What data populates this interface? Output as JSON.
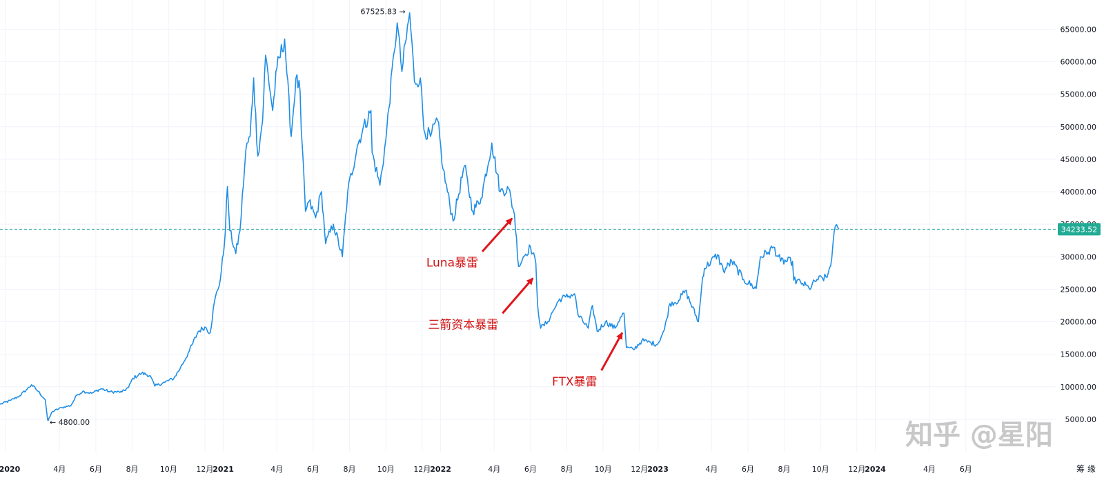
{
  "chart_data": {
    "type": "line",
    "title": "",
    "xlabel": "",
    "ylabel": "",
    "ylim": [
      0,
      69500
    ],
    "x_range": [
      "2019-12-23",
      "2024-10-30"
    ],
    "grid": true,
    "colors": {
      "line": "#1f8ee6",
      "price_line": "#26a69a",
      "price_badge": "#22ab94",
      "annotation": "#d10f0f",
      "arrow": "#e0161b",
      "grid": "#f0f3fa"
    },
    "y_ticks": [
      {
        "value": 5000,
        "label": "5000.00"
      },
      {
        "value": 10000,
        "label": "10000.00"
      },
      {
        "value": 15000,
        "label": "15000.00"
      },
      {
        "value": 20000,
        "label": "20000.00"
      },
      {
        "value": 25000,
        "label": "25000.00"
      },
      {
        "value": 30000,
        "label": "30000.00"
      },
      {
        "value": 35000,
        "label": "35000.00"
      },
      {
        "value": 40000,
        "label": "40000.00"
      },
      {
        "value": 45000,
        "label": "45000.00"
      },
      {
        "value": 50000,
        "label": "50000.00"
      },
      {
        "value": 55000,
        "label": "55000.00"
      },
      {
        "value": 60000,
        "label": "60000.00"
      },
      {
        "value": 65000,
        "label": "65000.00"
      }
    ],
    "x_ticks": [
      {
        "date": "2020-01-01",
        "label": "2020",
        "year": true
      },
      {
        "date": "2020-04-01",
        "label": "4月"
      },
      {
        "date": "2020-06-01",
        "label": "6月"
      },
      {
        "date": "2020-08-01",
        "label": "8月"
      },
      {
        "date": "2020-10-01",
        "label": "10月"
      },
      {
        "date": "2020-12-01",
        "label": "12月"
      },
      {
        "date": "2021-01-01",
        "label": "2021",
        "year": true
      },
      {
        "date": "2021-04-01",
        "label": "4月"
      },
      {
        "date": "2021-06-01",
        "label": "6月"
      },
      {
        "date": "2021-08-01",
        "label": "8月"
      },
      {
        "date": "2021-10-01",
        "label": "10月"
      },
      {
        "date": "2021-12-01",
        "label": "12月"
      },
      {
        "date": "2022-01-01",
        "label": "2022",
        "year": true
      },
      {
        "date": "2022-04-01",
        "label": "4月"
      },
      {
        "date": "2022-06-01",
        "label": "6月"
      },
      {
        "date": "2022-08-01",
        "label": "8月"
      },
      {
        "date": "2022-10-01",
        "label": "10月"
      },
      {
        "date": "2022-12-01",
        "label": "12月"
      },
      {
        "date": "2023-01-01",
        "label": "2023",
        "year": true
      },
      {
        "date": "2023-04-01",
        "label": "4月"
      },
      {
        "date": "2023-06-01",
        "label": "6月"
      },
      {
        "date": "2023-08-01",
        "label": "8月"
      },
      {
        "date": "2023-10-01",
        "label": "10月"
      },
      {
        "date": "2023-12-01",
        "label": "12月"
      },
      {
        "date": "2024-01-01",
        "label": "2024",
        "year": true
      },
      {
        "date": "2024-04-01",
        "label": "4月"
      },
      {
        "date": "2024-06-01",
        "label": "6月"
      }
    ],
    "series": [
      {
        "points": [
          [
            "2019-12-23",
            7300
          ],
          [
            "2020-01-10",
            7900
          ],
          [
            "2020-01-25",
            8600
          ],
          [
            "2020-02-05",
            9500
          ],
          [
            "2020-02-14",
            10300
          ],
          [
            "2020-02-25",
            9300
          ],
          [
            "2020-03-08",
            8000
          ],
          [
            "2020-03-12",
            4900
          ],
          [
            "2020-03-13",
            4800
          ],
          [
            "2020-03-20",
            6200
          ],
          [
            "2020-04-05",
            6800
          ],
          [
            "2020-04-20",
            7100
          ],
          [
            "2020-04-30",
            8700
          ],
          [
            "2020-05-10",
            9300
          ],
          [
            "2020-05-25",
            9000
          ],
          [
            "2020-06-10",
            9700
          ],
          [
            "2020-06-25",
            9200
          ],
          [
            "2020-07-15",
            9200
          ],
          [
            "2020-07-26",
            9900
          ],
          [
            "2020-08-02",
            11300
          ],
          [
            "2020-08-17",
            12100
          ],
          [
            "2020-08-31",
            11700
          ],
          [
            "2020-09-08",
            10100
          ],
          [
            "2020-09-25",
            10700
          ],
          [
            "2020-10-10",
            11300
          ],
          [
            "2020-10-21",
            12900
          ],
          [
            "2020-11-05",
            15500
          ],
          [
            "2020-11-20",
            18500
          ],
          [
            "2020-12-01",
            19200
          ],
          [
            "2020-12-10",
            18300
          ],
          [
            "2020-12-17",
            23000
          ],
          [
            "2020-12-27",
            26500
          ],
          [
            "2021-01-03",
            32000
          ],
          [
            "2021-01-08",
            40800
          ],
          [
            "2021-01-12",
            34000
          ],
          [
            "2021-01-22",
            30500
          ],
          [
            "2021-01-29",
            34000
          ],
          [
            "2021-02-08",
            46500
          ],
          [
            "2021-02-15",
            48500
          ],
          [
            "2021-02-21",
            57500
          ],
          [
            "2021-02-28",
            45500
          ],
          [
            "2021-03-08",
            51000
          ],
          [
            "2021-03-13",
            61000
          ],
          [
            "2021-03-25",
            52500
          ],
          [
            "2021-04-01",
            59000
          ],
          [
            "2021-04-14",
            63500
          ],
          [
            "2021-04-25",
            48500
          ],
          [
            "2021-05-03",
            57500
          ],
          [
            "2021-05-10",
            55500
          ],
          [
            "2021-05-12",
            49500
          ],
          [
            "2021-05-19",
            37000
          ],
          [
            "2021-05-25",
            38500
          ],
          [
            "2021-06-05",
            36000
          ],
          [
            "2021-06-15",
            40000
          ],
          [
            "2021-06-22",
            32000
          ],
          [
            "2021-07-05",
            35000
          ],
          [
            "2021-07-20",
            30000
          ],
          [
            "2021-07-29",
            40000
          ],
          [
            "2021-08-14",
            47000
          ],
          [
            "2021-08-23",
            49500
          ],
          [
            "2021-09-06",
            52500
          ],
          [
            "2021-09-08",
            46000
          ],
          [
            "2021-09-21",
            41000
          ],
          [
            "2021-10-01",
            48000
          ],
          [
            "2021-10-15",
            61500
          ],
          [
            "2021-10-20",
            66000
          ],
          [
            "2021-10-28",
            58500
          ],
          [
            "2021-11-10",
            67525.83
          ],
          [
            "2021-11-18",
            57000
          ],
          [
            "2021-11-28",
            57500
          ],
          [
            "2021-12-04",
            49500
          ],
          [
            "2021-12-15",
            48500
          ],
          [
            "2021-12-27",
            51000
          ],
          [
            "2022-01-05",
            43500
          ],
          [
            "2022-01-22",
            35500
          ],
          [
            "2022-02-10",
            44000
          ],
          [
            "2022-02-24",
            37000
          ],
          [
            "2022-03-10",
            39000
          ],
          [
            "2022-03-28",
            47500
          ],
          [
            "2022-04-11",
            40000
          ],
          [
            "2022-04-25",
            40500
          ],
          [
            "2022-05-05",
            36500
          ],
          [
            "2022-05-12",
            28500
          ],
          [
            "2022-05-20",
            30000
          ],
          [
            "2022-06-01",
            31500
          ],
          [
            "2022-06-10",
            29000
          ],
          [
            "2022-06-13",
            22500
          ],
          [
            "2022-06-18",
            19000
          ],
          [
            "2022-06-30",
            20000
          ],
          [
            "2022-07-08",
            21500
          ],
          [
            "2022-07-20",
            23500
          ],
          [
            "2022-07-30",
            23800
          ],
          [
            "2022-08-14",
            24300
          ],
          [
            "2022-08-20",
            21000
          ],
          [
            "2022-09-06",
            19000
          ],
          [
            "2022-09-13",
            22500
          ],
          [
            "2022-09-21",
            18500
          ],
          [
            "2022-10-05",
            20000
          ],
          [
            "2022-10-21",
            19000
          ],
          [
            "2022-10-30",
            20700
          ],
          [
            "2022-11-05",
            21300
          ],
          [
            "2022-11-09",
            16000
          ],
          [
            "2022-11-21",
            15700
          ],
          [
            "2022-12-05",
            17100
          ],
          [
            "2022-12-20",
            16800
          ],
          [
            "2022-12-31",
            16500
          ],
          [
            "2023-01-12",
            18800
          ],
          [
            "2023-01-21",
            22800
          ],
          [
            "2023-02-05",
            23300
          ],
          [
            "2023-02-16",
            24800
          ],
          [
            "2023-03-10",
            20000
          ],
          [
            "2023-03-17",
            26900
          ],
          [
            "2023-03-20",
            28200
          ],
          [
            "2023-04-11",
            30300
          ],
          [
            "2023-04-21",
            27800
          ],
          [
            "2023-05-05",
            29300
          ],
          [
            "2023-05-25",
            26500
          ],
          [
            "2023-06-15",
            25100
          ],
          [
            "2023-06-22",
            30000
          ],
          [
            "2023-07-05",
            30700
          ],
          [
            "2023-07-14",
            31500
          ],
          [
            "2023-07-26",
            29300
          ],
          [
            "2023-08-15",
            29300
          ],
          [
            "2023-08-17",
            26400
          ],
          [
            "2023-09-01",
            25900
          ],
          [
            "2023-09-12",
            25100
          ],
          [
            "2023-09-25",
            26500
          ],
          [
            "2023-10-12",
            26800
          ],
          [
            "2023-10-20",
            29800
          ],
          [
            "2023-10-24",
            33900
          ],
          [
            "2023-10-30",
            34500
          ],
          [
            "2023-11-01",
            34233.52
          ]
        ]
      }
    ],
    "current_price": {
      "value": 34233.52,
      "label": "34233.52"
    },
    "max_marker": {
      "date": "2021-11-10",
      "value": 67525.83,
      "label": "67525.83"
    },
    "min_marker": {
      "date": "2020-03-13",
      "value": 4800,
      "label": "4800.00"
    },
    "annotations": [
      {
        "text": "Luna暴雷",
        "arrow_from": [
          "2022-03-12",
          30800
        ],
        "arrow_to": [
          "2022-05-01",
          35900
        ]
      },
      {
        "text": "三箭资本暴雷",
        "arrow_from": [
          "2022-04-15",
          21300
        ],
        "arrow_to": [
          "2022-06-05",
          26700
        ]
      },
      {
        "text": "FTX暴雷",
        "arrow_from": [
          "2022-09-28",
          12500
        ],
        "arrow_to": [
          "2022-11-02",
          18300
        ]
      }
    ]
  },
  "watermark": "知乎 @星阳",
  "bottom_right": "筹 缘"
}
